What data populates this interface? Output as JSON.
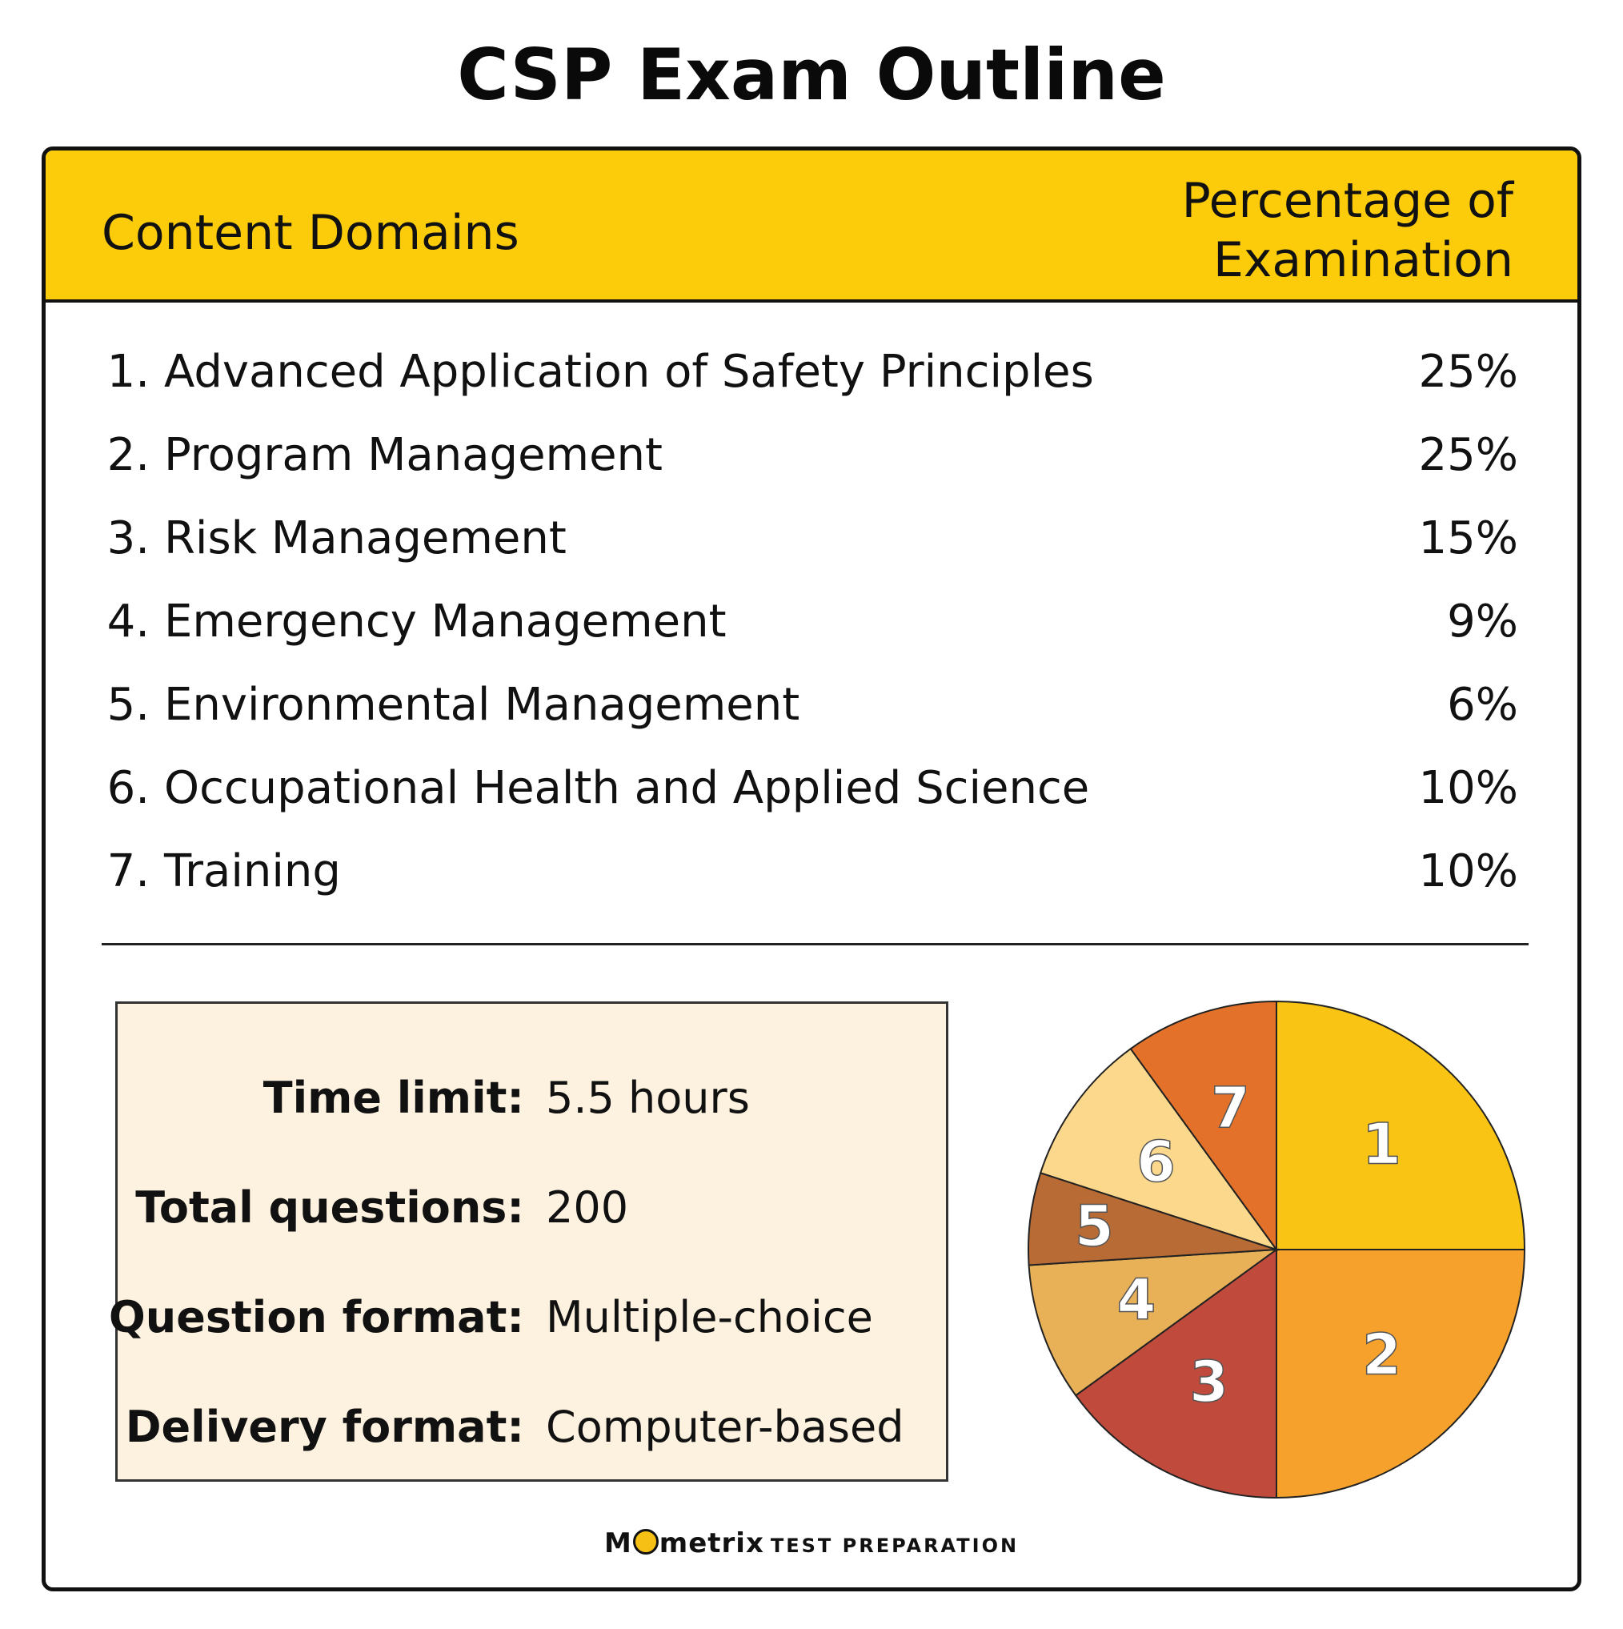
{
  "title": "CSP Exam Outline",
  "header": {
    "left": "Content Domains",
    "right_line1": "Percentage of",
    "right_line2": "Examination"
  },
  "domains": [
    {
      "num": "1.",
      "name": "Advanced Application of Safety Principles",
      "pct": "25%"
    },
    {
      "num": "2.",
      "name": "Program Management",
      "pct": "25%"
    },
    {
      "num": "3.",
      "name": "Risk Management",
      "pct": "15%"
    },
    {
      "num": "4.",
      "name": "Emergency Management",
      "pct": "9%"
    },
    {
      "num": "5.",
      "name": "Environmental Management",
      "pct": "6%"
    },
    {
      "num": "6.",
      "name": "Occupational Health and Applied Science",
      "pct": "10%"
    },
    {
      "num": "7.",
      "name": "Training",
      "pct": "10%"
    }
  ],
  "facts": [
    {
      "label": "Time limit:",
      "value": "5.5 hours"
    },
    {
      "label": "Total questions:",
      "value": "200"
    },
    {
      "label": "Question format:",
      "value": "Multiple-choice"
    },
    {
      "label": "Delivery format:",
      "value": "Computer-based"
    }
  ],
  "brand": {
    "logo_pre": "M",
    "logo_post": "metrix",
    "sub": "TEST PREPARATION"
  },
  "colors": {
    "header_bg": "#fccc0a",
    "facts_bg": "#fdf2df"
  },
  "chart_data": {
    "type": "pie",
    "start": "12 o'clock, clockwise",
    "categories": [
      "1",
      "2",
      "3",
      "4",
      "5",
      "6",
      "7"
    ],
    "values": [
      25,
      25,
      15,
      9,
      6,
      10,
      10
    ],
    "colors": [
      "#f9c414",
      "#f5a12b",
      "#c04a3c",
      "#e9b157",
      "#b86b34",
      "#fbd88c",
      "#e3712a"
    ]
  }
}
